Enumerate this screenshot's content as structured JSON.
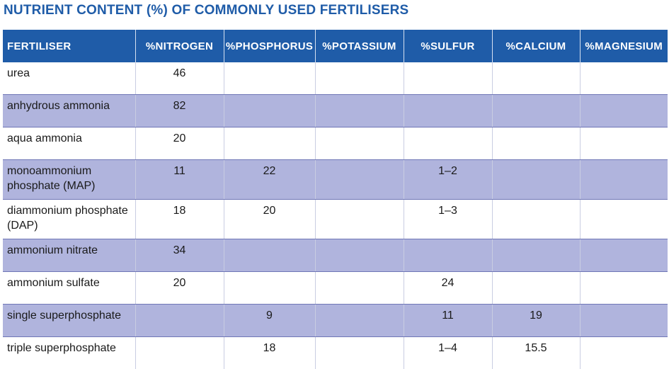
{
  "title": "NUTRIENT CONTENT (%) OF COMMONLY USED FERTILISERS",
  "table": {
    "headers": [
      "FERTILISER",
      "%NITROGEN",
      "%PHOSPHORUS",
      "%POTASSIUM",
      "%SULFUR",
      "%CALCIUM",
      "%MAGNESIUM"
    ],
    "rows": [
      [
        "urea",
        "46",
        "",
        "",
        "",
        "",
        ""
      ],
      [
        "anhydrous ammonia",
        "82",
        "",
        "",
        "",
        "",
        ""
      ],
      [
        "aqua ammonia",
        "20",
        "",
        "",
        "",
        "",
        ""
      ],
      [
        "monoammonium phosphate (MAP)",
        "11",
        "22",
        "",
        "1–2",
        "",
        ""
      ],
      [
        "diammonium phosphate (DAP)",
        "18",
        "20",
        "",
        "1–3",
        "",
        ""
      ],
      [
        "ammonium nitrate",
        "34",
        "",
        "",
        "",
        "",
        ""
      ],
      [
        "ammonium sulfate",
        "20",
        "",
        "",
        "24",
        "",
        ""
      ],
      [
        "single superphosphate",
        "",
        "9",
        "",
        "11",
        "19",
        ""
      ],
      [
        "triple superphosphate",
        "",
        "18",
        "",
        "1–4",
        "15.5",
        ""
      ]
    ]
  },
  "colors": {
    "header_bg": "#1f5ca8",
    "title": "#1f5ca8",
    "band_row": "#b0b4dd",
    "plain_row": "#ffffff"
  }
}
